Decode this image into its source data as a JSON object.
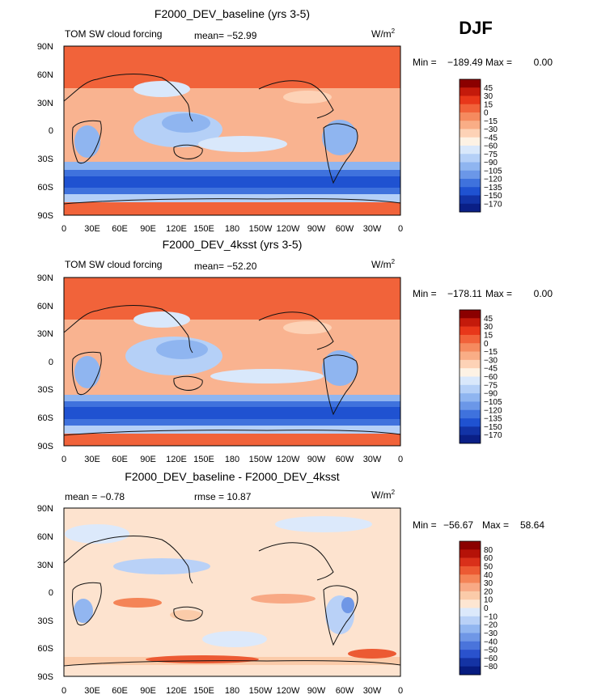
{
  "season_label": "DJF",
  "lat_ticks": [
    "90N",
    "60N",
    "30N",
    "0",
    "30S",
    "60S",
    "90S"
  ],
  "lon_ticks": [
    "0",
    "30E",
    "60E",
    "90E",
    "120E",
    "150E",
    "180",
    "150W",
    "120W",
    "90W",
    "60W",
    "30W",
    "0"
  ],
  "panels": [
    {
      "title": "F2000_DEV_baseline (yrs 3-5)",
      "left_label": "TOM SW cloud forcing",
      "mid_label": "mean=  −52.99",
      "units": "W/m",
      "units_sup": "2",
      "min_label": "Min = ",
      "min_value": "−189.49",
      "max_label": "Max = ",
      "max_value": "0.00",
      "colorbar": {
        "labels": [
          "45",
          "30",
          "15",
          "0",
          "−15",
          "−30",
          "−45",
          "−60",
          "−75",
          "−90",
          "−105",
          "−120",
          "−135",
          "−150",
          "−170"
        ],
        "colors": [
          "#8b0000",
          "#c41a0b",
          "#e8371a",
          "#f1623a",
          "#f58a5f",
          "#f9ad86",
          "#fdd2b6",
          "#fdf2e4",
          "#d9e8fb",
          "#b5d0f7",
          "#8fb5f0",
          "#6b97e8",
          "#3f72dd",
          "#1f52d1",
          "#1233a6",
          "#0a1f86"
        ]
      }
    },
    {
      "title": "F2000_DEV_4ksst (yrs 3-5)",
      "left_label": "TOM SW cloud forcing",
      "mid_label": "mean=  −52.20",
      "units": "W/m",
      "units_sup": "2",
      "min_label": "Min = ",
      "min_value": "−178.11",
      "max_label": "Max = ",
      "max_value": "0.00",
      "colorbar": {
        "labels": [
          "45",
          "30",
          "15",
          "0",
          "−15",
          "−30",
          "−45",
          "−60",
          "−75",
          "−90",
          "−105",
          "−120",
          "−135",
          "−150",
          "−170"
        ],
        "colors": [
          "#8b0000",
          "#c41a0b",
          "#e8371a",
          "#f1623a",
          "#f58a5f",
          "#f9ad86",
          "#fdd2b6",
          "#fdf2e4",
          "#d9e8fb",
          "#b5d0f7",
          "#8fb5f0",
          "#6b97e8",
          "#3f72dd",
          "#1f52d1",
          "#1233a6",
          "#0a1f86"
        ]
      }
    },
    {
      "title": "F2000_DEV_baseline - F2000_DEV_4ksst",
      "left_label": "mean =   −0.78",
      "mid_label": "rmse =   10.87",
      "units": "W/m",
      "units_sup": "2",
      "min_label": "Min = ",
      "min_value": "−56.67",
      "max_label": "Max = ",
      "max_value": "58.64",
      "colorbar": {
        "labels": [
          "80",
          "60",
          "50",
          "40",
          "30",
          "20",
          "10",
          "0",
          "−10",
          "−20",
          "−30",
          "−40",
          "−50",
          "−60",
          "−80"
        ],
        "colors": [
          "#8b0000",
          "#b51208",
          "#d9301a",
          "#ec5a33",
          "#f48457",
          "#f8a985",
          "#fbcba9",
          "#fde6d2",
          "#dce9fb",
          "#b9d1f7",
          "#92b6f0",
          "#6f97e6",
          "#4a74db",
          "#2a52cd",
          "#1433a4",
          "#071c80"
        ]
      }
    }
  ],
  "colors": {
    "land_warm": "#f1633a",
    "ocean_base": "#f9b390",
    "diff_base": "#fde3cf",
    "coast": "#111111"
  }
}
